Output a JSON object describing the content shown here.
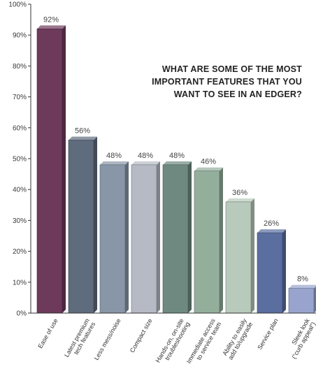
{
  "chart_data": {
    "type": "bar",
    "title_lines": [
      "WHAT ARE SOME OF THE MOST",
      "IMPORTANT FEATURES THAT YOU",
      "WANT TO SEE IN AN EDGER?"
    ],
    "categories": [
      [
        "Ease of use"
      ],
      [
        "Latest premium",
        "tech features"
      ],
      [
        "Less mess/noise"
      ],
      [
        "Compact size"
      ],
      [
        "Hands-on, on-site",
        "troubleshooting"
      ],
      [
        "Immediate access",
        "to service team"
      ],
      [
        "Ability to easily",
        "add to/upgrade"
      ],
      [
        "Service plan"
      ],
      [
        "Sleek look",
        "(“curb appeal”)"
      ]
    ],
    "values": [
      92,
      56,
      48,
      48,
      48,
      46,
      36,
      26,
      8
    ],
    "value_labels": [
      "92%",
      "56%",
      "48%",
      "48%",
      "48%",
      "46%",
      "36%",
      "26%",
      "8%"
    ],
    "ylim": [
      0,
      100
    ],
    "yticks": [
      0,
      10,
      20,
      30,
      40,
      50,
      60,
      70,
      80,
      90,
      100
    ],
    "ytick_labels": [
      "0%",
      "10%",
      "20%",
      "30%",
      "40%",
      "50%",
      "60%",
      "70%",
      "80%",
      "90%",
      "100%"
    ],
    "grid": false,
    "colors": [
      "#6e3a5c",
      "#5e6c7e",
      "#8896a8",
      "#b5bac4",
      "#6e8a80",
      "#94ae9c",
      "#b8cabb",
      "#5a6ea0",
      "#98a4ce"
    ]
  }
}
